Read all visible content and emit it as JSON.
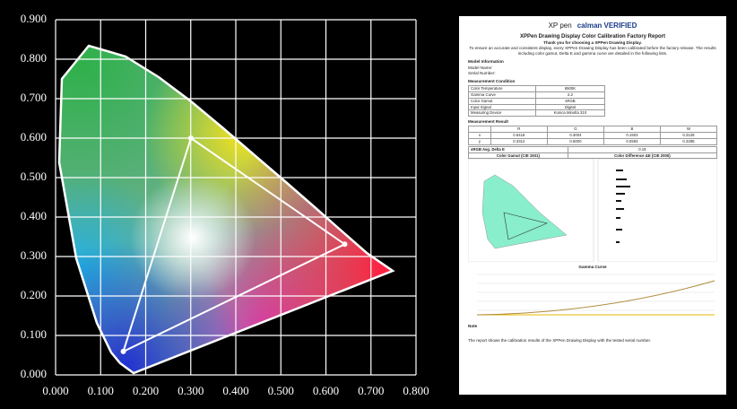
{
  "chart_data": {
    "type": "line",
    "x": [
      0.6418,
      0.3004,
      0.1503
    ],
    "series": [
      {
        "values": [
          0.3312,
          0.6,
          0.0593
        ],
        "color": "#ffffff"
      }
    ],
    "xlim": [
      0,
      0.8
    ],
    "ylim": [
      0,
      0.9
    ],
    "xticks": [
      {
        "value": 0,
        "label": "0.000"
      },
      {
        "value": 0.1,
        "label": "0.100"
      },
      {
        "value": 0.2,
        "label": "0.200"
      },
      {
        "value": 0.3,
        "label": "0.300"
      },
      {
        "value": 0.4,
        "label": "0.400"
      },
      {
        "value": 0.5,
        "label": "0.500"
      },
      {
        "value": 0.6,
        "label": "0.600"
      },
      {
        "value": 0.7,
        "label": "0.700"
      },
      {
        "value": 0.8,
        "label": "0.800"
      }
    ],
    "yticks": [
      {
        "value": 0,
        "label": "0.000"
      },
      {
        "value": 0.1,
        "label": "0.100"
      },
      {
        "value": 0.2,
        "label": "0.200"
      },
      {
        "value": 0.3,
        "label": "0.300"
      },
      {
        "value": 0.4,
        "label": "0.400"
      },
      {
        "value": 0.5,
        "label": "0.500"
      },
      {
        "value": 0.6,
        "label": "0.600"
      },
      {
        "value": 0.7,
        "label": "0.700"
      },
      {
        "value": 0.8,
        "label": "0.800"
      },
      {
        "value": 0.9,
        "label": "0.900"
      }
    ],
    "grid": true
  },
  "report": {
    "logo_left": "XP pen",
    "logo_right": "calman VERIFIED",
    "title": "XPPen Drawing Display Color Calibration Factory Report",
    "thanks": "Thank you for choosing a XPPen Drawing Display.",
    "intro": "To ensure an accurate and consistent display, every XPPen Drawing Display has been calibrated before the factory release. The results including color gamut, Delta E and gamma curve are detailed in the following lists.",
    "model_heading": "Model Information",
    "model_name": "Model Name:",
    "serial": "Serial Number:",
    "condition_heading": "Measurement Condition",
    "conditions": [
      [
        "Color Temperature",
        "6500K"
      ],
      [
        "Gamma Curve",
        "2.2"
      ],
      [
        "Color Gamut",
        "sRGB"
      ],
      [
        "Input Signal",
        "Digital"
      ],
      [
        "Measuring Device",
        "Konica Minolta 310"
      ]
    ],
    "result_heading": "Measurement Result",
    "result_header": [
      "R",
      "G",
      "B",
      "W"
    ],
    "result_rows": [
      [
        "x",
        "0.6418",
        "0.3004",
        "0.1503",
        "0.3128"
      ],
      [
        "y",
        "0.3312",
        "0.6000",
        "0.0593",
        "0.3288"
      ]
    ],
    "delta_label": "sRGB Avg. Delta E",
    "delta_value": "0.19",
    "gamut_heading": "Color Gamut (CIE 1931)",
    "diff_heading": "Color Difference ΔE (CIE 2000)",
    "gamma_heading": "Gamma Curve",
    "note": "Note",
    "footer": "The report shows the calibration results of the XPPen Drawing Display with the tested serial number."
  }
}
